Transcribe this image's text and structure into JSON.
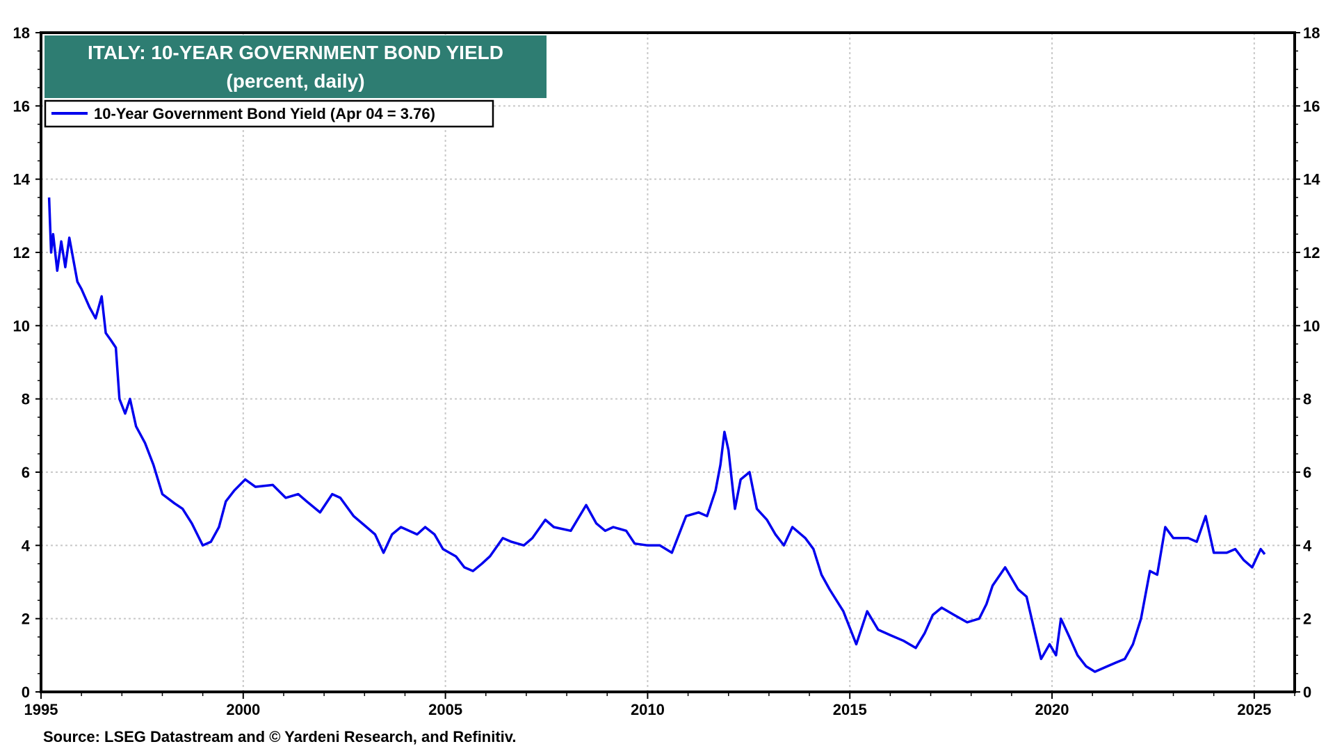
{
  "chart_data": {
    "type": "line",
    "title": "ITALY: 10-YEAR GOVERNMENT BOND YIELD",
    "subtitle": "(percent, daily)",
    "source": "Source: LSEG Datastream and © Yardeni Research, and Refinitiv.",
    "xlabel": "",
    "ylabel": "",
    "xlim": [
      1995,
      2026
    ],
    "ylim": [
      0,
      18
    ],
    "x_ticks": [
      "1995",
      "2000",
      "2005",
      "2010",
      "2015",
      "2020",
      "2025"
    ],
    "y_ticks": [
      "0",
      "2",
      "4",
      "6",
      "8",
      "10",
      "12",
      "14",
      "16",
      "18"
    ],
    "grid": true,
    "legend_position": "top-left",
    "colors": {
      "line": "#0000ee",
      "title_bg": "#2e7d72",
      "title_text": "#ffffff"
    },
    "series": [
      {
        "name": "10-Year Government Bond Yield (Apr 04 = 3.76)",
        "x": [
          1995.2,
          1995.25,
          1995.3,
          1995.4,
          1995.5,
          1995.6,
          1995.7,
          1995.8,
          1995.9,
          1996.0,
          1996.2,
          1996.35,
          1996.5,
          1996.6,
          1996.73,
          1996.85,
          1996.94,
          1997.08,
          1997.2,
          1997.35,
          1997.57,
          1997.78,
          1998.0,
          1998.3,
          1998.5,
          1998.73,
          1999.0,
          1999.2,
          1999.4,
          1999.57,
          1999.78,
          2000.05,
          2000.3,
          2000.73,
          2001.05,
          2001.36,
          2001.57,
          2001.9,
          2002.2,
          2002.4,
          2002.73,
          2003.05,
          2003.26,
          2003.47,
          2003.68,
          2003.9,
          2004.3,
          2004.5,
          2004.73,
          2004.94,
          2005.26,
          2005.47,
          2005.68,
          2005.9,
          2006.1,
          2006.42,
          2006.63,
          2006.94,
          2007.15,
          2007.47,
          2007.68,
          2008.1,
          2008.48,
          2008.73,
          2008.95,
          2009.15,
          2009.47,
          2009.68,
          2010.0,
          2010.3,
          2010.6,
          2010.95,
          2011.26,
          2011.47,
          2011.68,
          2011.8,
          2011.9,
          2012.0,
          2012.16,
          2012.3,
          2012.52,
          2012.7,
          2012.95,
          2013.16,
          2013.37,
          2013.58,
          2013.9,
          2014.1,
          2014.3,
          2014.5,
          2014.84,
          2015.16,
          2015.43,
          2015.7,
          2016.0,
          2016.32,
          2016.63,
          2016.85,
          2017.05,
          2017.27,
          2017.58,
          2017.9,
          2018.2,
          2018.38,
          2018.53,
          2018.84,
          2019.16,
          2019.37,
          2019.58,
          2019.73,
          2019.94,
          2020.1,
          2020.22,
          2020.43,
          2020.63,
          2020.84,
          2021.06,
          2021.37,
          2021.58,
          2021.8,
          2022.0,
          2022.2,
          2022.42,
          2022.6,
          2022.8,
          2023.0,
          2023.37,
          2023.58,
          2023.8,
          2024.0,
          2024.32,
          2024.53,
          2024.74,
          2024.95,
          2025.16,
          2025.26
        ],
        "values": [
          13.5,
          12.0,
          12.5,
          11.5,
          12.3,
          11.6,
          12.4,
          11.8,
          11.2,
          11.0,
          10.5,
          10.2,
          10.8,
          9.8,
          9.6,
          9.4,
          8.0,
          7.6,
          8.0,
          7.25,
          6.8,
          6.2,
          5.4,
          5.15,
          5.0,
          4.6,
          4.0,
          4.1,
          4.5,
          5.2,
          5.5,
          5.8,
          5.6,
          5.65,
          5.3,
          5.4,
          5.2,
          4.9,
          5.4,
          5.3,
          4.8,
          4.5,
          4.3,
          3.8,
          4.3,
          4.5,
          4.3,
          4.5,
          4.3,
          3.9,
          3.7,
          3.4,
          3.3,
          3.5,
          3.7,
          4.2,
          4.1,
          4.0,
          4.2,
          4.7,
          4.5,
          4.4,
          5.1,
          4.6,
          4.4,
          4.5,
          4.4,
          4.05,
          4.0,
          4.0,
          3.8,
          4.8,
          4.9,
          4.8,
          5.5,
          6.2,
          7.1,
          6.6,
          5.0,
          5.8,
          6.0,
          5.0,
          4.7,
          4.3,
          4.0,
          4.5,
          4.2,
          3.9,
          3.2,
          2.8,
          2.2,
          1.3,
          2.2,
          1.7,
          1.55,
          1.4,
          1.2,
          1.6,
          2.1,
          2.3,
          2.1,
          1.9,
          2.0,
          2.4,
          2.9,
          3.4,
          2.8,
          2.6,
          1.6,
          0.9,
          1.3,
          1.0,
          2.0,
          1.5,
          1.0,
          0.7,
          0.55,
          0.7,
          0.8,
          0.9,
          1.3,
          2.0,
          3.3,
          3.2,
          4.5,
          4.2,
          4.2,
          4.1,
          4.8,
          3.8,
          3.8,
          3.9,
          3.6,
          3.4,
          3.9,
          3.76
        ]
      }
    ]
  }
}
